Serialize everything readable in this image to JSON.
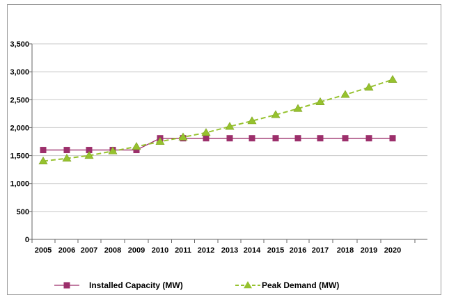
{
  "chart_data": {
    "type": "line",
    "title": "",
    "xlabel": "",
    "ylabel": "",
    "x": [
      "2005",
      "2006",
      "2007",
      "2008",
      "2009",
      "2010",
      "2011",
      "2012",
      "2013",
      "2014",
      "2015",
      "2016",
      "2017",
      "2018",
      "2019",
      "2020"
    ],
    "ylim": [
      0,
      3500
    ],
    "yticks": [
      0,
      500,
      1000,
      1500,
      2000,
      2500,
      3000,
      3500
    ],
    "ytick_labels": [
      "0",
      "500",
      "1,000",
      "1,500",
      "2,000",
      "2,500",
      "3,000",
      "3,500"
    ],
    "grid": "horizontal",
    "series": [
      {
        "name": "Installed Capacity (MW)",
        "color": "#9c2f6b",
        "marker": "square",
        "line": "solid",
        "values": [
          1600,
          1600,
          1600,
          1600,
          1600,
          1810,
          1810,
          1810,
          1810,
          1810,
          1810,
          1810,
          1810,
          1810,
          1810,
          1810
        ]
      },
      {
        "name": "Peak Demand (MW)",
        "color": "#96c22e",
        "marker": "triangle",
        "line": "dashed",
        "values": [
          1400,
          1450,
          1500,
          1580,
          1660,
          1750,
          1830,
          1910,
          2020,
          2120,
          2230,
          2340,
          2460,
          2590,
          2720,
          2860
        ]
      }
    ],
    "legend_position": "bottom"
  }
}
